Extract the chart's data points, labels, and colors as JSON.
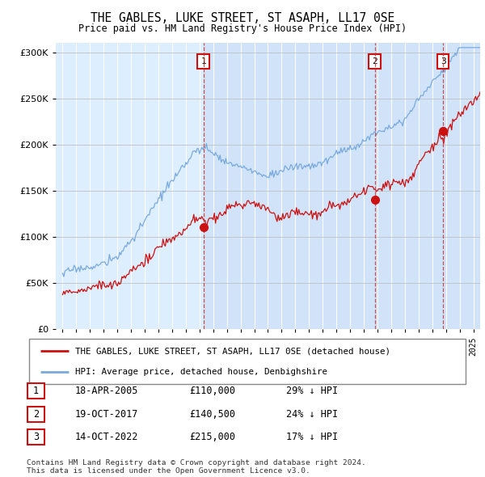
{
  "title": "THE GABLES, LUKE STREET, ST ASAPH, LL17 0SE",
  "subtitle": "Price paid vs. HM Land Registry's House Price Index (HPI)",
  "hpi_color": "#7aaadd",
  "price_color": "#cc1111",
  "bg_color": "#ddeeff",
  "sale_dates_year": [
    2005.29,
    2017.8,
    2022.79
  ],
  "sale_prices": [
    110000,
    140500,
    215000
  ],
  "sale_labels": [
    "1",
    "2",
    "3"
  ],
  "legend_house": "THE GABLES, LUKE STREET, ST ASAPH, LL17 0SE (detached house)",
  "legend_hpi": "HPI: Average price, detached house, Denbighshire",
  "table": [
    {
      "num": "1",
      "date": "18-APR-2005",
      "price": "£110,000",
      "hpi": "29% ↓ HPI"
    },
    {
      "num": "2",
      "date": "19-OCT-2017",
      "price": "£140,500",
      "hpi": "24% ↓ HPI"
    },
    {
      "num": "3",
      "date": "14-OCT-2022",
      "price": "£215,000",
      "hpi": "17% ↓ HPI"
    }
  ],
  "footer": "Contains HM Land Registry data © Crown copyright and database right 2024.\nThis data is licensed under the Open Government Licence v3.0.",
  "ylim": [
    0,
    310000
  ],
  "xlim": [
    1994.5,
    2025.5
  ]
}
